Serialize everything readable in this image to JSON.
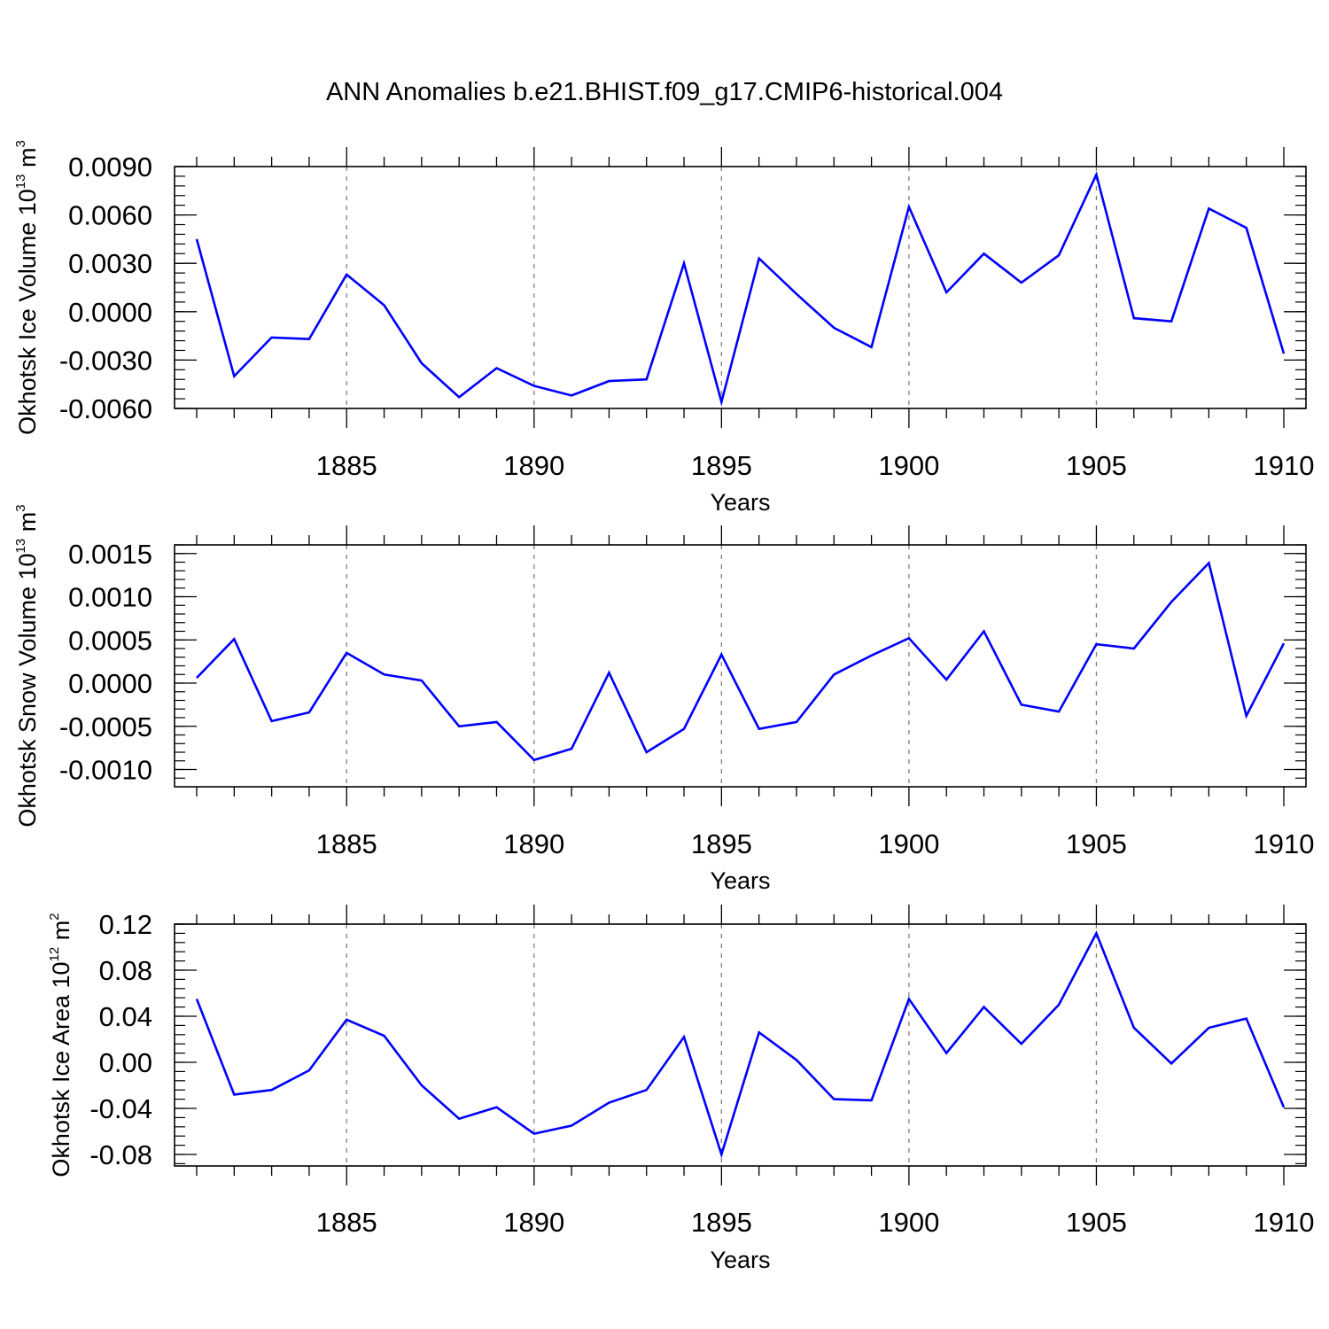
{
  "title": "ANN Anomalies b.e21.BHIST.f09_g17.CMIP6-historical.004",
  "colors": {
    "line": "#0000ff",
    "axis": "#000000",
    "grid": "#808080"
  },
  "chart_data": [
    {
      "type": "line",
      "ylabel": "Okhotsk Ice Volume 10",
      "ylabel_exp": "13",
      "ylabel_unit": " m",
      "ylabel_unit_exp": "3",
      "xlabel": "Years",
      "xlim": [
        1881,
        1910
      ],
      "ylim": [
        -0.006,
        0.009
      ],
      "yticks": [
        -0.006,
        -0.003,
        0.0,
        0.003,
        0.006,
        0.009
      ],
      "yticklabels": [
        "-0.0060",
        "-0.0030",
        "0.0000",
        "0.0030",
        "0.0060",
        "0.0090"
      ],
      "xticks": [
        1885,
        1890,
        1895,
        1900,
        1905,
        1910
      ],
      "xticklabels": [
        "1885",
        "1890",
        "1895",
        "1900",
        "1905",
        "1910"
      ],
      "x": [
        1881,
        1882,
        1883,
        1884,
        1885,
        1886,
        1887,
        1888,
        1889,
        1890,
        1891,
        1892,
        1893,
        1894,
        1895,
        1896,
        1897,
        1898,
        1899,
        1900,
        1901,
        1902,
        1903,
        1904,
        1905,
        1906,
        1907,
        1908,
        1909,
        1910
      ],
      "values": [
        0.0045,
        -0.004,
        -0.0016,
        -0.0017,
        0.0023,
        0.0004,
        -0.0032,
        -0.0053,
        -0.0035,
        -0.0046,
        -0.0052,
        -0.0043,
        -0.0042,
        0.003,
        -0.0056,
        0.0033,
        0.0011,
        -0.001,
        -0.0022,
        0.0065,
        0.0012,
        0.0036,
        0.0018,
        0.0035,
        0.0085,
        -0.0004,
        -0.0006,
        0.0064,
        0.0052,
        -0.0026
      ]
    },
    {
      "type": "line",
      "ylabel": "Okhotsk Snow Volume 10",
      "ylabel_exp": "13",
      "ylabel_unit": " m",
      "ylabel_unit_exp": "3",
      "xlabel": "Years",
      "xlim": [
        1881,
        1910
      ],
      "ylim": [
        -0.0012,
        0.0016
      ],
      "yticks": [
        -0.001,
        -0.0005,
        0.0,
        0.0005,
        0.001,
        0.0015
      ],
      "yticklabels": [
        "-0.0010",
        "-0.0005",
        "0.0000",
        "0.0005",
        "0.0010",
        "0.0015"
      ],
      "xticks": [
        1885,
        1890,
        1895,
        1900,
        1905,
        1910
      ],
      "xticklabels": [
        "1885",
        "1890",
        "1895",
        "1900",
        "1905",
        "1910"
      ],
      "x": [
        1881,
        1882,
        1883,
        1884,
        1885,
        1886,
        1887,
        1888,
        1889,
        1890,
        1891,
        1892,
        1893,
        1894,
        1895,
        1896,
        1897,
        1898,
        1899,
        1900,
        1901,
        1902,
        1903,
        1904,
        1905,
        1906,
        1907,
        1908,
        1909,
        1910
      ],
      "values": [
        6e-05,
        0.00051,
        -0.00044,
        -0.00034,
        0.00035,
        0.0001,
        3e-05,
        -0.0005,
        -0.00045,
        -0.00089,
        -0.00076,
        0.00012,
        -0.0008,
        -0.00053,
        0.00033,
        -0.00053,
        -0.00045,
        0.0001,
        0.00032,
        0.00052,
        4e-05,
        0.0006,
        -0.00025,
        -0.00033,
        0.00045,
        0.0004,
        0.00094,
        0.00139,
        -0.00038,
        0.00046
      ]
    },
    {
      "type": "line",
      "ylabel": "Okhotsk Ice Area 10",
      "ylabel_exp": "12",
      "ylabel_unit": " m",
      "ylabel_unit_exp": "2",
      "xlabel": "Years",
      "xlim": [
        1881,
        1910
      ],
      "ylim": [
        -0.09,
        0.12
      ],
      "yticks": [
        -0.08,
        -0.04,
        0.0,
        0.04,
        0.08,
        0.12
      ],
      "yticklabels": [
        "-0.08",
        "-0.04",
        "0.00",
        "0.04",
        "0.08",
        "0.12"
      ],
      "xticks": [
        1885,
        1890,
        1895,
        1900,
        1905,
        1910
      ],
      "xticklabels": [
        "1885",
        "1890",
        "1895",
        "1900",
        "1905",
        "1910"
      ],
      "x": [
        1881,
        1882,
        1883,
        1884,
        1885,
        1886,
        1887,
        1888,
        1889,
        1890,
        1891,
        1892,
        1893,
        1894,
        1895,
        1896,
        1897,
        1898,
        1899,
        1900,
        1901,
        1902,
        1903,
        1904,
        1905,
        1906,
        1907,
        1908,
        1909,
        1910
      ],
      "values": [
        0.055,
        -0.028,
        -0.024,
        -0.007,
        0.037,
        0.023,
        -0.02,
        -0.049,
        -0.039,
        -0.062,
        -0.055,
        -0.035,
        -0.024,
        0.022,
        -0.08,
        0.026,
        0.002,
        -0.032,
        -0.033,
        0.055,
        0.008,
        0.048,
        0.016,
        0.05,
        0.112,
        0.03,
        -0.001,
        0.03,
        0.038,
        -0.039
      ]
    }
  ]
}
